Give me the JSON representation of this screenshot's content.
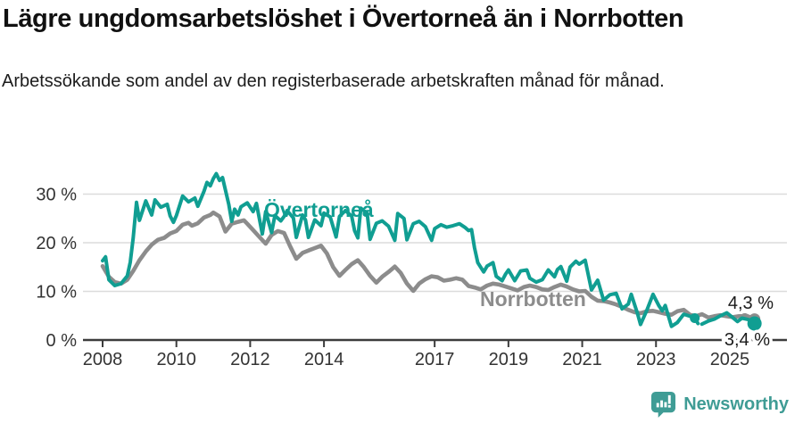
{
  "header": {
    "title": "Lägre ungdomsarbetslöshet i Övertorneå än i Norrbotten",
    "subtitle": "Arbetssökande som andel av den registerbaserade arbetskraften månad för månad."
  },
  "footer": {
    "brand": "Newsworthy",
    "logo_icon": "newsworthy-speech-bubble-bar-chart-icon"
  },
  "colors": {
    "overtornea_teal": "#109E92",
    "norrbotten_gray": "#8C8C8C",
    "brand_teal": "#3F9C95",
    "grid": "#DCDCDC",
    "axis": "#3C3C3C",
    "tick_text": "#333333",
    "annotation_text": "#1A1A1A"
  },
  "chart_data": {
    "type": "line",
    "unit": "%",
    "grid": "horizontal",
    "legend_position": "inline-labels",
    "xlim": [
      2007.47,
      2026.55
    ],
    "ylim": [
      0,
      37
    ],
    "x_ticks": [
      2008,
      2010,
      2012,
      2014,
      2017,
      2019,
      2021,
      2023,
      2025
    ],
    "y_ticks": [
      0,
      10,
      20,
      30
    ],
    "y_tick_labels": [
      "0 %",
      "10 %",
      "20 %",
      "30 %"
    ],
    "series": [
      {
        "name": "Norrbotten",
        "color": "#8C8C8C",
        "end_label": "4,3 %",
        "end_value": 4.3,
        "points": [
          [
            2008.0,
            15.2
          ],
          [
            2008.17,
            13.0
          ],
          [
            2008.33,
            11.9
          ],
          [
            2008.5,
            11.6
          ],
          [
            2008.67,
            12.4
          ],
          [
            2008.83,
            14.2
          ],
          [
            2009.0,
            16.4
          ],
          [
            2009.17,
            18.2
          ],
          [
            2009.33,
            19.6
          ],
          [
            2009.5,
            20.6
          ],
          [
            2009.67,
            21.0
          ],
          [
            2009.83,
            21.9
          ],
          [
            2010.0,
            22.4
          ],
          [
            2010.17,
            23.7
          ],
          [
            2010.33,
            24.1
          ],
          [
            2010.42,
            23.5
          ],
          [
            2010.58,
            24.0
          ],
          [
            2010.75,
            25.2
          ],
          [
            2010.92,
            25.7
          ],
          [
            2011.0,
            26.2
          ],
          [
            2011.17,
            25.4
          ],
          [
            2011.33,
            22.3
          ],
          [
            2011.5,
            23.9
          ],
          [
            2011.67,
            24.3
          ],
          [
            2011.83,
            24.6
          ],
          [
            2011.92,
            23.9
          ],
          [
            2012.08,
            22.6
          ],
          [
            2012.25,
            21.2
          ],
          [
            2012.42,
            19.8
          ],
          [
            2012.58,
            21.6
          ],
          [
            2012.75,
            22.4
          ],
          [
            2012.92,
            22.0
          ],
          [
            2013.08,
            19.3
          ],
          [
            2013.25,
            16.7
          ],
          [
            2013.42,
            17.9
          ],
          [
            2013.58,
            18.4
          ],
          [
            2013.75,
            18.9
          ],
          [
            2013.92,
            19.4
          ],
          [
            2014.08,
            17.8
          ],
          [
            2014.25,
            15.0
          ],
          [
            2014.42,
            13.2
          ],
          [
            2014.58,
            14.4
          ],
          [
            2014.75,
            15.6
          ],
          [
            2014.92,
            16.4
          ],
          [
            2015.08,
            15.0
          ],
          [
            2015.25,
            13.2
          ],
          [
            2015.42,
            11.8
          ],
          [
            2015.58,
            13.0
          ],
          [
            2015.75,
            14.0
          ],
          [
            2015.92,
            15.1
          ],
          [
            2016.08,
            13.8
          ],
          [
            2016.25,
            11.6
          ],
          [
            2016.42,
            10.1
          ],
          [
            2016.58,
            11.6
          ],
          [
            2016.75,
            12.5
          ],
          [
            2016.92,
            13.1
          ],
          [
            2017.08,
            12.9
          ],
          [
            2017.25,
            12.2
          ],
          [
            2017.42,
            12.4
          ],
          [
            2017.58,
            12.7
          ],
          [
            2017.75,
            12.4
          ],
          [
            2017.92,
            11.1
          ],
          [
            2018.08,
            10.8
          ],
          [
            2018.25,
            10.4
          ],
          [
            2018.42,
            11.2
          ],
          [
            2018.58,
            11.6
          ],
          [
            2018.75,
            11.4
          ],
          [
            2018.92,
            11.0
          ],
          [
            2019.08,
            10.6
          ],
          [
            2019.25,
            10.2
          ],
          [
            2019.42,
            10.9
          ],
          [
            2019.58,
            11.2
          ],
          [
            2019.75,
            10.9
          ],
          [
            2019.92,
            10.4
          ],
          [
            2020.08,
            10.3
          ],
          [
            2020.25,
            10.9
          ],
          [
            2020.42,
            11.4
          ],
          [
            2020.58,
            11.0
          ],
          [
            2020.75,
            10.4
          ],
          [
            2020.92,
            10.0
          ],
          [
            2021.08,
            10.1
          ],
          [
            2021.25,
            8.9
          ],
          [
            2021.42,
            8.1
          ],
          [
            2021.58,
            8.0
          ],
          [
            2021.75,
            7.7
          ],
          [
            2021.92,
            7.3
          ],
          [
            2022.08,
            6.8
          ],
          [
            2022.25,
            6.2
          ],
          [
            2022.42,
            5.7
          ],
          [
            2022.58,
            5.5
          ],
          [
            2022.75,
            5.9
          ],
          [
            2022.92,
            6.0
          ],
          [
            2023.08,
            5.7
          ],
          [
            2023.25,
            5.4
          ],
          [
            2023.42,
            5.2
          ],
          [
            2023.58,
            5.9
          ],
          [
            2023.75,
            6.2
          ],
          [
            2023.92,
            5.2
          ],
          [
            2024.08,
            4.9
          ],
          [
            2024.25,
            5.3
          ],
          [
            2024.42,
            4.6
          ],
          [
            2024.58,
            4.9
          ],
          [
            2024.75,
            5.1
          ],
          [
            2024.92,
            4.9
          ],
          [
            2025.08,
            4.7
          ],
          [
            2025.25,
            4.9
          ],
          [
            2025.42,
            5.1
          ],
          [
            2025.67,
            4.3
          ]
        ]
      },
      {
        "name": "Övertorneå",
        "color": "#109E92",
        "end_label": "3,4 %",
        "end_value": 3.4,
        "dashed_between": [
          2024.05,
          2024.42
        ],
        "gap_dot_x": 2024.05,
        "points": [
          [
            2008.0,
            16.3
          ],
          [
            2008.08,
            17.1
          ],
          [
            2008.17,
            12.4
          ],
          [
            2008.33,
            11.2
          ],
          [
            2008.5,
            11.6
          ],
          [
            2008.67,
            13.2
          ],
          [
            2008.75,
            16.0
          ],
          [
            2008.83,
            21.0
          ],
          [
            2008.92,
            28.3
          ],
          [
            2009.0,
            24.6
          ],
          [
            2009.17,
            28.6
          ],
          [
            2009.33,
            25.7
          ],
          [
            2009.42,
            28.8
          ],
          [
            2009.58,
            27.3
          ],
          [
            2009.75,
            27.9
          ],
          [
            2009.83,
            25.5
          ],
          [
            2009.92,
            24.2
          ],
          [
            2010.0,
            25.6
          ],
          [
            2010.17,
            29.6
          ],
          [
            2010.33,
            28.4
          ],
          [
            2010.5,
            29.2
          ],
          [
            2010.58,
            27.5
          ],
          [
            2010.75,
            30.6
          ],
          [
            2010.83,
            32.4
          ],
          [
            2010.92,
            31.7
          ],
          [
            2011.0,
            33.2
          ],
          [
            2011.08,
            34.2
          ],
          [
            2011.17,
            32.8
          ],
          [
            2011.25,
            33.4
          ],
          [
            2011.42,
            27.9
          ],
          [
            2011.5,
            24.4
          ],
          [
            2011.58,
            26.9
          ],
          [
            2011.67,
            25.7
          ],
          [
            2011.75,
            27.4
          ],
          [
            2011.92,
            28.2
          ],
          [
            2012.08,
            26.4
          ],
          [
            2012.17,
            28.1
          ],
          [
            2012.33,
            21.8
          ],
          [
            2012.42,
            26.4
          ],
          [
            2012.58,
            22.1
          ],
          [
            2012.67,
            25.6
          ],
          [
            2012.83,
            24.5
          ],
          [
            2012.92,
            25.4
          ],
          [
            2013.0,
            26.6
          ],
          [
            2013.17,
            25.1
          ],
          [
            2013.25,
            21.1
          ],
          [
            2013.42,
            25.7
          ],
          [
            2013.5,
            24.7
          ],
          [
            2013.58,
            21.1
          ],
          [
            2013.75,
            24.7
          ],
          [
            2013.92,
            23.5
          ],
          [
            2014.0,
            26.1
          ],
          [
            2014.17,
            25.3
          ],
          [
            2014.33,
            21.2
          ],
          [
            2014.42,
            25.4
          ],
          [
            2014.58,
            26.6
          ],
          [
            2014.75,
            25.5
          ],
          [
            2014.83,
            22.5
          ],
          [
            2014.92,
            21.0
          ],
          [
            2015.0,
            27.1
          ],
          [
            2015.17,
            26.1
          ],
          [
            2015.25,
            20.7
          ],
          [
            2015.42,
            24.0
          ],
          [
            2015.58,
            24.5
          ],
          [
            2015.75,
            23.4
          ],
          [
            2015.92,
            20.5
          ],
          [
            2016.0,
            26.0
          ],
          [
            2016.17,
            25.0
          ],
          [
            2016.25,
            20.6
          ],
          [
            2016.42,
            23.9
          ],
          [
            2016.58,
            24.4
          ],
          [
            2016.75,
            23.3
          ],
          [
            2016.92,
            20.5
          ],
          [
            2017.0,
            22.9
          ],
          [
            2017.17,
            23.7
          ],
          [
            2017.33,
            23.2
          ],
          [
            2017.5,
            23.5
          ],
          [
            2017.67,
            23.9
          ],
          [
            2017.83,
            23.1
          ],
          [
            2017.92,
            22.5
          ],
          [
            2018.0,
            22.7
          ],
          [
            2018.08,
            19.0
          ],
          [
            2018.17,
            15.9
          ],
          [
            2018.33,
            14.0
          ],
          [
            2018.42,
            15.2
          ],
          [
            2018.58,
            15.9
          ],
          [
            2018.67,
            13.1
          ],
          [
            2018.83,
            12.2
          ],
          [
            2018.92,
            13.5
          ],
          [
            2019.0,
            14.4
          ],
          [
            2019.17,
            12.2
          ],
          [
            2019.33,
            14.2
          ],
          [
            2019.5,
            14.4
          ],
          [
            2019.58,
            12.7
          ],
          [
            2019.75,
            11.9
          ],
          [
            2019.92,
            12.4
          ],
          [
            2020.08,
            14.4
          ],
          [
            2020.25,
            13.0
          ],
          [
            2020.33,
            14.5
          ],
          [
            2020.42,
            15.1
          ],
          [
            2020.58,
            12.1
          ],
          [
            2020.67,
            15.0
          ],
          [
            2020.83,
            16.2
          ],
          [
            2020.92,
            15.6
          ],
          [
            2021.08,
            16.4
          ],
          [
            2021.25,
            10.3
          ],
          [
            2021.42,
            12.3
          ],
          [
            2021.58,
            8.2
          ],
          [
            2021.75,
            9.3
          ],
          [
            2021.92,
            9.6
          ],
          [
            2022.08,
            6.4
          ],
          [
            2022.25,
            7.4
          ],
          [
            2022.33,
            9.4
          ],
          [
            2022.5,
            5.4
          ],
          [
            2022.58,
            3.2
          ],
          [
            2022.75,
            6.1
          ],
          [
            2022.92,
            9.4
          ],
          [
            2023.08,
            7.0
          ],
          [
            2023.17,
            6.0
          ],
          [
            2023.25,
            7.1
          ],
          [
            2023.42,
            2.8
          ],
          [
            2023.58,
            3.6
          ],
          [
            2023.75,
            5.3
          ],
          [
            2023.92,
            4.9
          ],
          [
            2024.05,
            4.5
          ],
          [
            2024.17,
            3.0
          ],
          [
            2024.42,
            3.9
          ],
          [
            2024.58,
            4.3
          ],
          [
            2024.75,
            5.0
          ],
          [
            2024.92,
            5.6
          ],
          [
            2025.08,
            4.6
          ],
          [
            2025.21,
            3.8
          ],
          [
            2025.33,
            4.5
          ],
          [
            2025.5,
            4.2
          ],
          [
            2025.67,
            3.4
          ]
        ]
      }
    ]
  }
}
